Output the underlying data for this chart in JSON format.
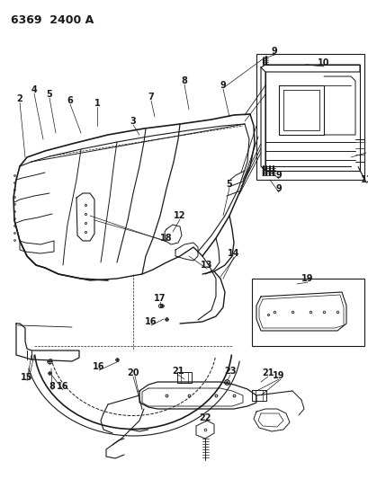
{
  "title": "6369  2400 A",
  "bg_color": "#ffffff",
  "line_color": "#1a1a1a",
  "label_fontsize": 7,
  "bold_label_fontsize": 7.5,
  "fig_width": 4.1,
  "fig_height": 5.33,
  "dpi": 100
}
